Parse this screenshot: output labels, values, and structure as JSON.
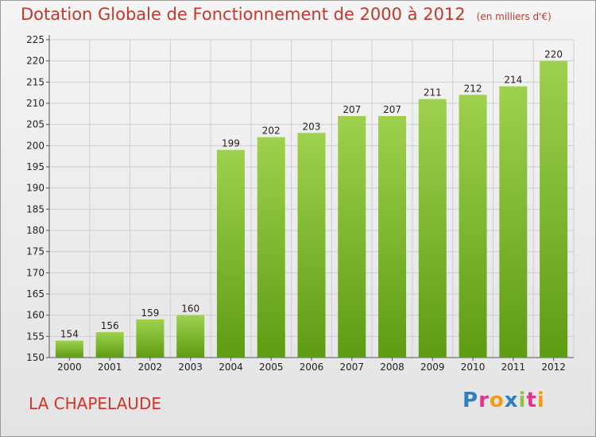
{
  "header": {
    "title": "Dotation Globale de Fonctionnement de 2000 à 2012",
    "unit": "(en milliers d'€)"
  },
  "footer": {
    "commune": "LA CHAPELAUDE",
    "logo": "Proxiti",
    "logo_colors": [
      "#2f7fc1",
      "#e4318e",
      "#f39c12",
      "#2f7fc1",
      "#8dc63f",
      "#e4318e",
      "#f39c12"
    ]
  },
  "chart_data": {
    "type": "bar",
    "title": "Dotation Globale de Fonctionnement de 2000 à 2012",
    "subtitle": "(en milliers d'€)",
    "xlabel": "",
    "ylabel": "",
    "categories": [
      "2000",
      "2001",
      "2002",
      "2003",
      "2004",
      "2005",
      "2006",
      "2007",
      "2008",
      "2009",
      "2010",
      "2011",
      "2012"
    ],
    "values": [
      154,
      156,
      159,
      160,
      199,
      202,
      203,
      207,
      207,
      211,
      212,
      214,
      220
    ],
    "ylim": [
      150,
      225
    ],
    "yticks": [
      150,
      155,
      160,
      165,
      170,
      175,
      180,
      185,
      190,
      195,
      200,
      205,
      210,
      215,
      220,
      225
    ],
    "grid": true,
    "bar_color_top": "#9ed14e",
    "bar_color_bottom": "#5e9c12"
  }
}
